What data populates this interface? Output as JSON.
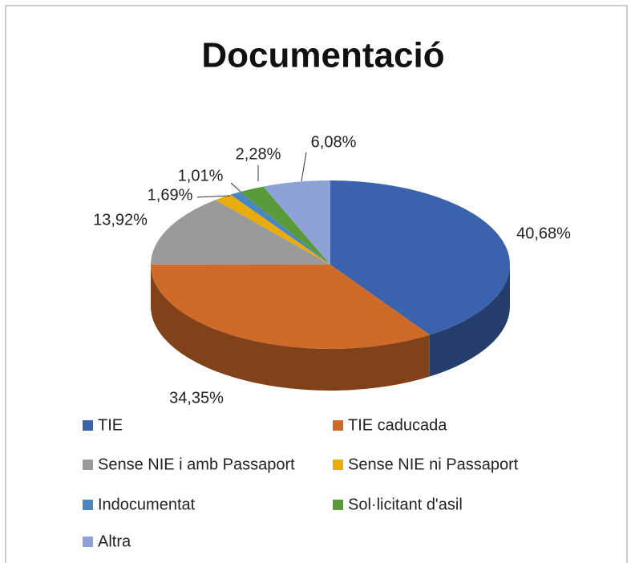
{
  "chart_data": {
    "type": "pie",
    "title": "Documentació",
    "categories": [
      "TIE",
      "TIE caducada",
      "Sense NIE i amb Passaport",
      "Sense NIE ni Passaport",
      "Indocumentat",
      "Sol·licitant d'asil",
      "Altra"
    ],
    "values": [
      40.68,
      34.35,
      13.92,
      1.69,
      1.01,
      2.28,
      6.08
    ],
    "value_labels": [
      "40,68%",
      "34,35%",
      "13,92%",
      "1,69%",
      "1,01%",
      "2,28%",
      "6,08%"
    ],
    "colors": [
      "#3a62ad",
      "#d06a28",
      "#9a9a9a",
      "#e8ac0c",
      "#4a86c0",
      "#5a9a3a",
      "#8ea2d8"
    ],
    "legend": "bottom"
  }
}
